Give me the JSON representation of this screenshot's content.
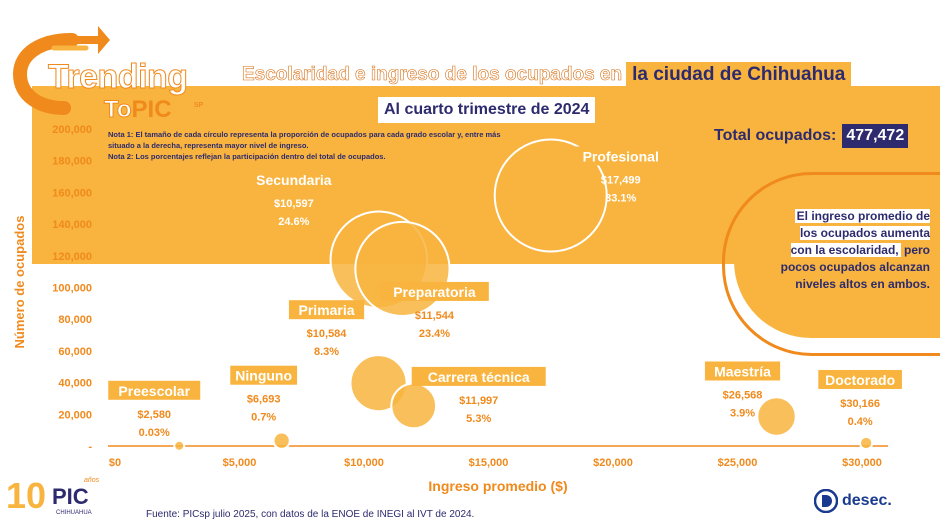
{
  "header": {
    "title_part1": "Escolaridad e ingreso de los ocupados en",
    "title_part2": "la ciudad de Chihuahua",
    "subtitle": "Al cuarto trimestre de 2024",
    "brand_line1": "Trending",
    "brand_to": "To",
    "brand_pic": "PIC",
    "brand_sp": "SP"
  },
  "notes": {
    "note1": "Nota 1: El tamaño de cada círculo representa la proporción de ocupados para cada grado escolar y, entre más situado a la derecha, representa mayor nivel de ingreso.",
    "note2": "Nota 2: Los porcentajes reflejan la participación dentro del total de ocupados."
  },
  "total": {
    "label": "Total ocupados:",
    "value": "477,472"
  },
  "insight": {
    "part1": "El ingreso promedio de los ocupados aumenta con la escolaridad,",
    "part2": "pero pocos ocupados alcanzan niveles altos en ambos."
  },
  "chart_data": {
    "type": "scatter",
    "xlabel": "Ingreso promedio ($)",
    "ylabel": "Número de ocupados",
    "xlim": [
      0,
      30000
    ],
    "ylim": [
      0,
      200000
    ],
    "x_ticks": [
      "$0",
      "$5,000",
      "$10,000",
      "$15,000",
      "$20,000",
      "$25,000",
      "$30,000"
    ],
    "y_ticks": [
      "-",
      "20,000",
      "40,000",
      "60,000",
      "80,000",
      "100,000",
      "120,000",
      "140,000",
      "160,000",
      "180,000",
      "200,000"
    ],
    "points": [
      {
        "name": "Preescolar",
        "x": 2580,
        "y": 143,
        "income_label": "$2,580",
        "share_label": "0.03%",
        "share": 0.03
      },
      {
        "name": "Ninguno",
        "x": 6693,
        "y": 3342,
        "income_label": "$6,693",
        "share_label": "0.7%",
        "share": 0.7
      },
      {
        "name": "Primaria",
        "x": 10584,
        "y": 39630,
        "income_label": "$10,584",
        "share_label": "8.3%",
        "share": 8.3
      },
      {
        "name": "Secundaria",
        "x": 10597,
        "y": 117458,
        "income_label": "$10,597",
        "share_label": "24.6%",
        "share": 24.6
      },
      {
        "name": "Preparatoria",
        "x": 11544,
        "y": 111721,
        "income_label": "$11,544",
        "share_label": "23.4%",
        "share": 23.4
      },
      {
        "name": "Carrera técnica",
        "x": 11997,
        "y": 25306,
        "income_label": "$11,997",
        "share_label": "5.3%",
        "share": 5.3
      },
      {
        "name": "Profesional",
        "x": 17499,
        "y": 158043,
        "income_label": "$17,499",
        "share_label": "33.1%",
        "share": 33.1
      },
      {
        "name": "Maestría",
        "x": 26568,
        "y": 18621,
        "income_label": "$26,568",
        "share_label": "3.9%",
        "share": 3.9
      },
      {
        "name": "Doctorado",
        "x": 30166,
        "y": 1910,
        "income_label": "$30,166",
        "share_label": "0.4%",
        "share": 0.4
      }
    ],
    "colors": {
      "bubble": "#f8b43e",
      "bubble_stroke": "#f08a1c",
      "axis_text": "#f08a1c",
      "label_bg": "#f8b43e",
      "value_text": "#f08a1c",
      "navy": "#2d2b6e"
    }
  },
  "footer": {
    "source": "Fuente:  PICsp julio 2025, con datos de la ENOE de INEGI al IVT de 2024.",
    "logo_10": "10",
    "logo_pic": "PIC",
    "logo_years": "años",
    "logo_city": "CHIHUAHUA",
    "desec": "desec."
  }
}
